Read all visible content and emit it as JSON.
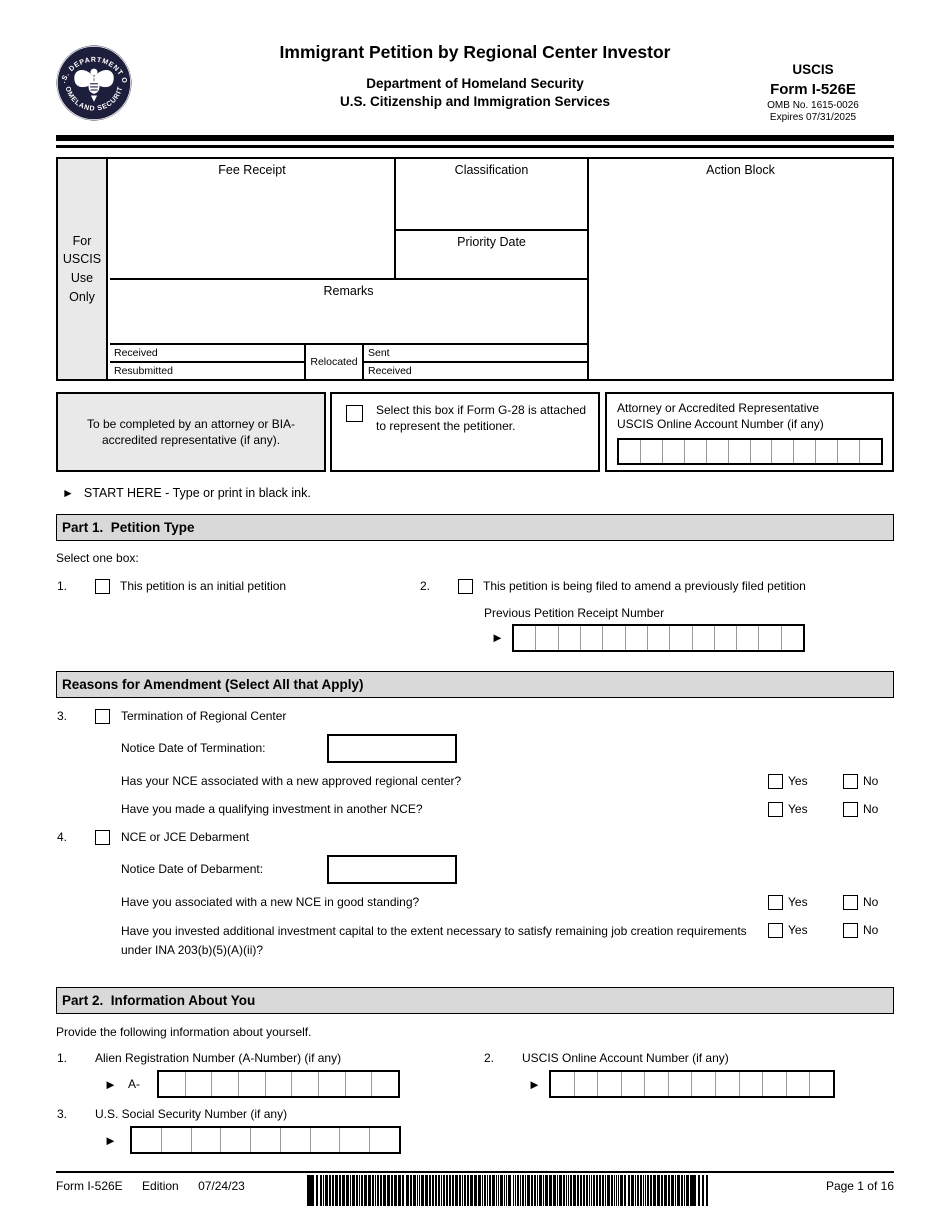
{
  "icons": {
    "start_arrow": "►",
    "field_arrow": "►"
  },
  "header": {
    "title": "Immigrant Petition by Regional Center Investor",
    "subtitle1": "Department of Homeland Security",
    "subtitle2": "U.S. Citizenship and Immigration Services",
    "agency": "USCIS",
    "form_number": "Form I-526E",
    "omb": "OMB No. 1615-0026",
    "expires": "Expires 07/31/2025",
    "seal": {
      "top_text": "U.S. DEPARTMENT OF",
      "bottom_text": "HOMELAND SECURITY"
    }
  },
  "uscis_use_box": {
    "side_label": "For\nUSCIS\nUse\nOnly",
    "fee_receipt": "Fee Receipt",
    "classification": "Classification",
    "priority_date": "Priority Date",
    "action_block": "Action Block",
    "remarks": "Remarks",
    "received": "Received",
    "resubmitted": "Resubmitted",
    "relocated": "Relocated",
    "sent": "Sent",
    "received2": "Received"
  },
  "attorney_section": {
    "left_note": "To be completed by an attorney or BIA-accredited representative (if any).",
    "g28_label": "Select this box if Form G-28 is attached to represent the petitioner.",
    "account_label_line1": "Attorney or Accredited Representative",
    "account_label_line2": "USCIS Online Account Number (if any)",
    "account_cells": 12
  },
  "start_here": "START HERE - Type or print in black ink.",
  "part1": {
    "heading": "Part 1.  Petition Type",
    "select_one": "Select one box:",
    "item1_num": "1.",
    "item1_label": "This petition is an initial petition",
    "item2_num": "2.",
    "item2_label": "This petition is being filed to amend a previously filed petition",
    "receipt_label": "Previous Petition Receipt Number",
    "receipt_cells": 13
  },
  "amendment": {
    "heading": "Reasons for Amendment (Select All that Apply)",
    "item3_num": "3.",
    "item3_label": "Termination of Regional Center",
    "termination_date_label": "Notice Date of Termination:",
    "q3a": "Has your NCE associated with a new approved regional center?",
    "q3b": "Have you made a qualifying investment in another NCE?",
    "item4_num": "4.",
    "item4_label": "NCE or JCE Debarment",
    "debarment_date_label": "Notice Date of Debarment:",
    "q4a": "Have you associated with a new NCE in good standing?",
    "q4b": "Have you invested additional investment capital to the extent necessary to satisfy remaining job creation requirements under INA 203(b)(5)(A)(ii)?",
    "yes": "Yes",
    "no": "No"
  },
  "part2": {
    "heading": "Part 2.  Information About You",
    "intro": "Provide the following information about yourself.",
    "item1_num": "1.",
    "item1_label": "Alien Registration Number (A-Number) (if any)",
    "a_prefix": "A-",
    "anumber_cells": 9,
    "item2_num": "2.",
    "item2_label": "USCIS Online Account Number (if any)",
    "account_cells": 12,
    "item3_num": "3.",
    "item3_label": "U.S. Social Security Number (if any)",
    "ssn_cells": 9
  },
  "footer": {
    "form": "Form I-526E",
    "edition": "Edition",
    "date": "07/24/23",
    "page": "Page 1 of 16"
  }
}
